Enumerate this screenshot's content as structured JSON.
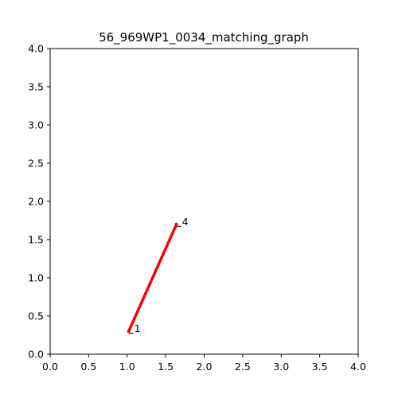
{
  "chart_data": {
    "type": "line",
    "title": "56_969WP1_0034_matching_graph",
    "xlabel": "",
    "ylabel": "",
    "xlim": [
      0,
      4
    ],
    "ylim": [
      0,
      4
    ],
    "grid": false,
    "xticks": [
      "0.0",
      "0.5",
      "1.0",
      "1.5",
      "2.0",
      "2.5",
      "3.0",
      "3.5",
      "4.0"
    ],
    "yticks": [
      "0.0",
      "0.5",
      "1.0",
      "1.5",
      "2.0",
      "2.5",
      "3.0",
      "3.5",
      "4.0"
    ],
    "nodes": [
      {
        "label": "1",
        "x": 1.02,
        "y": 0.3
      },
      {
        "label": "4",
        "x": 1.64,
        "y": 1.7
      }
    ],
    "edges": [
      {
        "from": "1",
        "to": "4",
        "color": "#ff0000"
      }
    ]
  }
}
